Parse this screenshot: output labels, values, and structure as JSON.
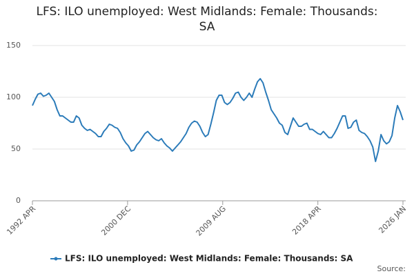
{
  "chart_data": {
    "type": "line",
    "title": "LFS: ILO unemployed: West Midlands: Female: Thousands: SA",
    "source": "Source:",
    "x": [
      "1992 APR",
      "1992 JUL",
      "1992 OCT",
      "1993 JAN",
      "1993 APR",
      "1993 JUL",
      "1993 OCT",
      "1994 JAN",
      "1994 APR",
      "1994 JUL",
      "1994 OCT",
      "1995 JAN",
      "1995 APR",
      "1995 JUL",
      "1995 OCT",
      "1996 JAN",
      "1996 APR",
      "1996 JUL",
      "1996 OCT",
      "1997 JAN",
      "1997 APR",
      "1997 JUL",
      "1997 OCT",
      "1998 JAN",
      "1998 APR",
      "1998 JUL",
      "1998 OCT",
      "1999 JAN",
      "1999 APR",
      "1999 JUL",
      "1999 OCT",
      "2000 JAN",
      "2000 APR",
      "2000 JUL",
      "2000 OCT",
      "2001 JAN",
      "2001 APR",
      "2001 JUL",
      "2001 OCT",
      "2002 JAN",
      "2002 APR",
      "2002 JUL",
      "2002 OCT",
      "2003 JAN",
      "2003 APR",
      "2003 JUL",
      "2003 OCT",
      "2004 JAN",
      "2004 APR",
      "2004 JUL",
      "2004 OCT",
      "2005 JAN",
      "2005 APR",
      "2005 JUL",
      "2005 OCT",
      "2006 JAN",
      "2006 APR",
      "2006 JUL",
      "2006 OCT",
      "2007 JAN",
      "2007 APR",
      "2007 JUL",
      "2007 OCT",
      "2008 JAN",
      "2008 APR",
      "2008 JUL",
      "2008 OCT",
      "2009 JAN",
      "2009 APR",
      "2009 JUL",
      "2009 OCT",
      "2010 JAN",
      "2010 APR",
      "2010 JUL",
      "2010 OCT",
      "2011 JAN",
      "2011 APR",
      "2011 JUL",
      "2011 OCT",
      "2012 JAN",
      "2012 APR",
      "2012 JUL",
      "2012 OCT",
      "2013 JAN",
      "2013 APR",
      "2013 JUL",
      "2013 OCT",
      "2014 JAN",
      "2014 APR",
      "2014 JUL",
      "2014 OCT",
      "2015 JAN",
      "2015 APR",
      "2015 JUL",
      "2015 OCT",
      "2016 JAN",
      "2016 APR",
      "2016 JUL",
      "2016 OCT",
      "2017 JAN",
      "2017 APR",
      "2017 JUL",
      "2017 OCT",
      "2018 JAN",
      "2018 APR",
      "2018 JUL",
      "2018 OCT",
      "2019 JAN",
      "2019 APR",
      "2019 JUL",
      "2019 OCT",
      "2020 JAN",
      "2020 APR",
      "2020 JUL",
      "2020 OCT",
      "2021 JAN",
      "2021 APR",
      "2021 JUL",
      "2021 OCT",
      "2022 JAN",
      "2022 APR",
      "2022 JUL",
      "2022 OCT",
      "2023 JAN",
      "2023 APR",
      "2023 JUL",
      "2023 OCT",
      "2024 JAN",
      "2024 APR",
      "2024 JUL",
      "2024 OCT",
      "2025 JAN",
      "2025 APR",
      "2025 JUL",
      "2025 OCT",
      "2026 JAN"
    ],
    "series": [
      {
        "name": "LFS: ILO unemployed: West Midlands: Female: Thousands: SA",
        "color": "#2b7bb9",
        "values": [
          92,
          98,
          103,
          104,
          101,
          102,
          104,
          100,
          96,
          88,
          82,
          82,
          80,
          78,
          76,
          76,
          82,
          80,
          73,
          70,
          68,
          69,
          67,
          65,
          62,
          62,
          67,
          70,
          74,
          73,
          71,
          70,
          66,
          60,
          56,
          53,
          48,
          49,
          54,
          57,
          61,
          65,
          67,
          64,
          61,
          59,
          58,
          60,
          56,
          53,
          51,
          48,
          51,
          54,
          57,
          61,
          65,
          71,
          75,
          77,
          76,
          72,
          66,
          62,
          64,
          74,
          85,
          97,
          102,
          102,
          95,
          93,
          95,
          99,
          104,
          105,
          100,
          97,
          100,
          104,
          100,
          108,
          115,
          118,
          114,
          105,
          97,
          88,
          84,
          80,
          75,
          73,
          66,
          64,
          72,
          80,
          76,
          72,
          72,
          74,
          75,
          69,
          69,
          67,
          65,
          64,
          67,
          64,
          61,
          61,
          65,
          70,
          76,
          82,
          82,
          70,
          71,
          76,
          78,
          68,
          66,
          65,
          62,
          58,
          52,
          38,
          48,
          64,
          58,
          55,
          57,
          63,
          80,
          92,
          86,
          78
        ]
      }
    ],
    "xlim": [
      "1992 APR",
      "2026 JAN"
    ],
    "xticks": [
      "1992 APR",
      "2000 DEC",
      "2009 AUG",
      "2018 APR",
      "2026 JAN"
    ],
    "ylim": [
      0,
      150
    ],
    "yticks": [
      0,
      50,
      100,
      150
    ],
    "grid": true
  }
}
